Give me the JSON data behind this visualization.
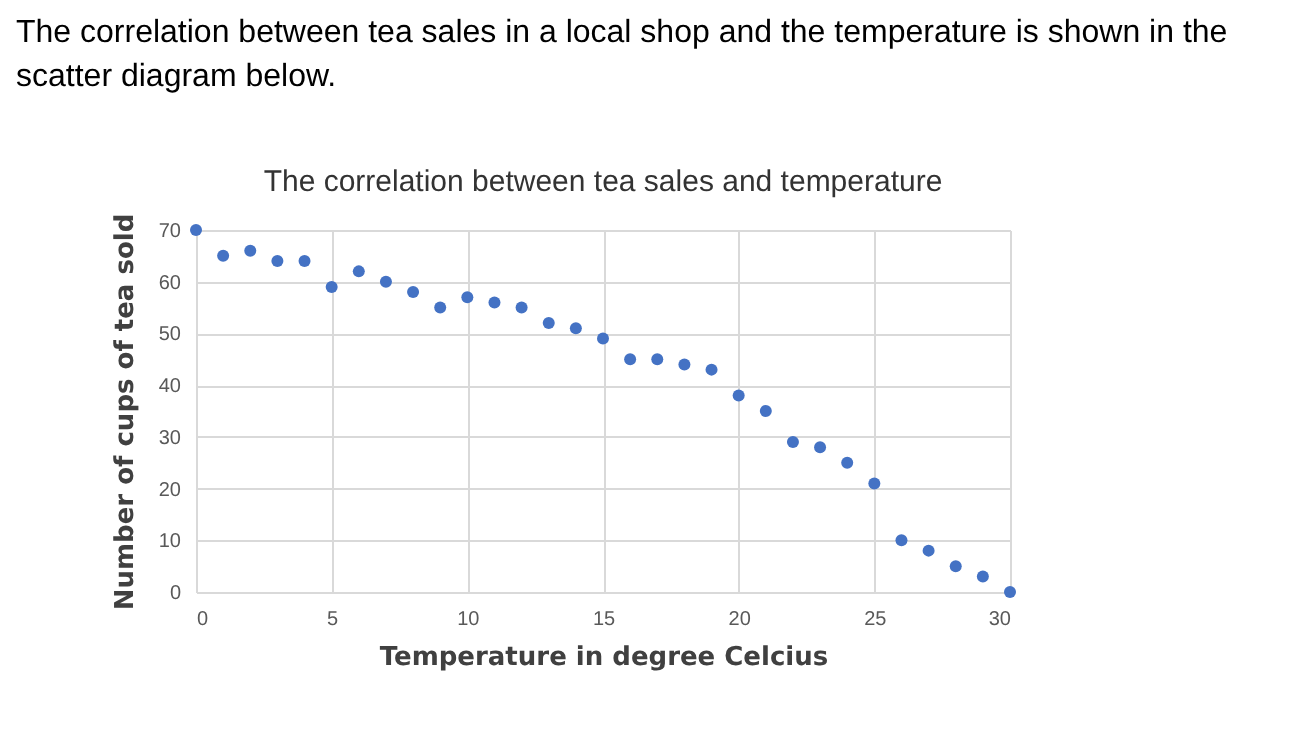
{
  "chart_data": {
    "type": "scatter",
    "title": "The correlation between tea sales and temperature",
    "xlabel": "Temperature in degree Celcius",
    "ylabel": "Number of cups of tea sold",
    "annotations": [
      "The correlation between tea sales in a local shop and the temperature is shown in the scatter diagram below."
    ],
    "x": [
      0,
      1,
      2,
      3,
      4,
      5,
      6,
      7,
      8,
      9,
      10,
      11,
      12,
      13,
      14,
      15,
      16,
      17,
      18,
      19,
      20,
      21,
      22,
      23,
      24,
      25,
      26,
      27,
      28,
      29,
      30
    ],
    "series": [
      {
        "color": "#4472c4",
        "values": [
          70,
          65,
          66,
          64,
          64,
          59,
          62,
          60,
          58,
          55,
          57,
          56,
          55,
          52,
          51,
          49,
          45,
          45,
          44,
          43,
          38,
          35,
          29,
          28,
          25,
          21,
          10,
          8,
          5,
          3,
          0
        ]
      }
    ],
    "xlim": [
      0,
      30
    ],
    "xticks": [
      0,
      5,
      10,
      15,
      20,
      25,
      30
    ],
    "ylim": [
      0,
      70
    ],
    "yticks": [
      0,
      10,
      20,
      30,
      40,
      50,
      60,
      70
    ],
    "grid": true,
    "marker": "circle",
    "legend": false
  }
}
